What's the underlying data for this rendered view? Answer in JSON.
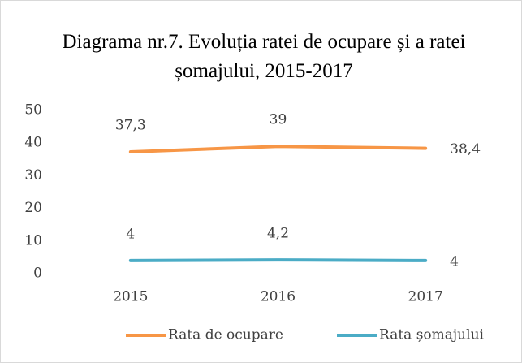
{
  "chart_data": {
    "type": "line",
    "title": "Diagrama nr.7. Evoluția ratei de ocupare și a ratei șomajului, 2015-2017",
    "categories": [
      "2015",
      "2016",
      "2017"
    ],
    "series": [
      {
        "name": "Rata de ocupare",
        "color": "#f79646",
        "values": [
          37.3,
          39,
          38.4
        ],
        "value_labels": [
          "37,3",
          "39",
          "38,4"
        ]
      },
      {
        "name": "Rata șomajului",
        "color": "#4bacc6",
        "values": [
          4,
          4.2,
          4
        ],
        "value_labels": [
          "4",
          "4,2",
          "4"
        ]
      }
    ],
    "ylim": [
      0,
      50
    ],
    "yticks": [
      0,
      10,
      20,
      30,
      40,
      50
    ],
    "grid": false,
    "legend": "bottom"
  }
}
